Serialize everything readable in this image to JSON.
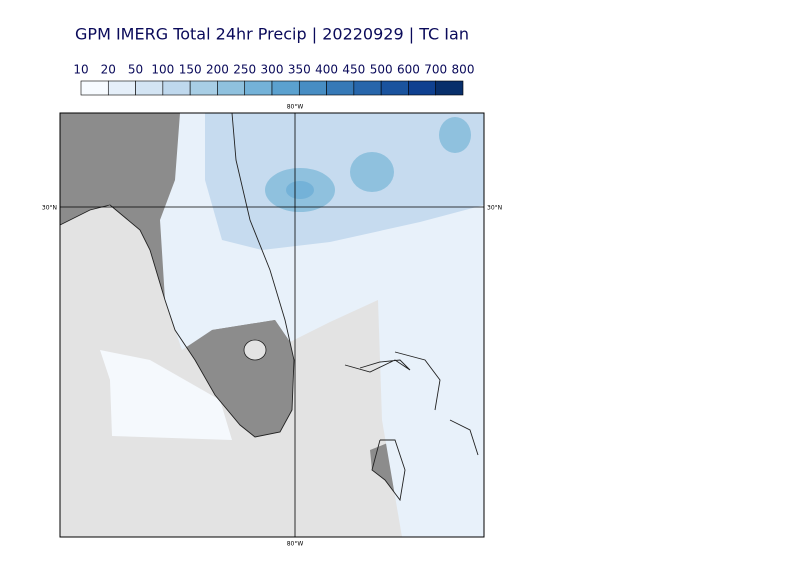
{
  "title": "GPM IMERG Total 24hr Precip | 20220929 | TC Ian",
  "colorbar": {
    "levels": [
      10,
      20,
      50,
      100,
      150,
      200,
      250,
      300,
      350,
      400,
      450,
      500,
      600,
      700,
      800
    ],
    "colors": [
      "#f7fbff",
      "#e5eff9",
      "#d3e4f3",
      "#bfd8ed",
      "#a8cee5",
      "#8fc1de",
      "#74b2d8",
      "#5ba1cf",
      "#478dc3",
      "#3679b7",
      "#2766ab",
      "#1a539e",
      "#0f4090",
      "#082f6b"
    ]
  },
  "gridlines": {
    "lon_label": "80°W",
    "lat_label": "30°N"
  }
}
